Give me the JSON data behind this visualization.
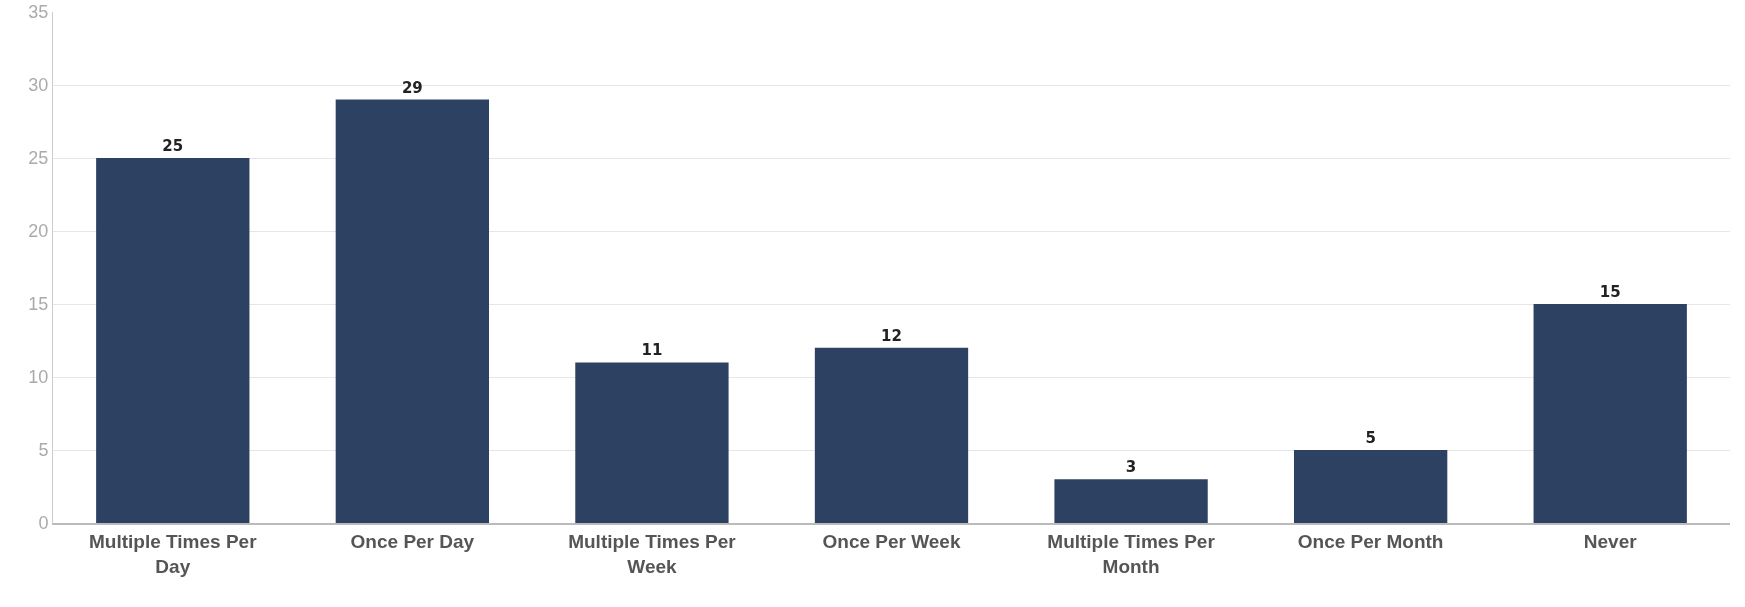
{
  "chart_data": {
    "type": "bar",
    "categories": [
      "Multiple Times Per Day",
      "Once Per Day",
      "Multiple Times Per Week",
      "Once Per Week",
      "Multiple Times Per Month",
      "Once Per Month",
      "Never"
    ],
    "values": [
      25,
      29,
      11,
      12,
      3,
      5,
      15
    ],
    "color": "#2d4263",
    "ylim": [
      0,
      35
    ],
    "yticks": [
      0,
      5,
      10,
      15,
      20,
      25,
      30,
      35
    ],
    "grid": "y",
    "data_labels": true
  }
}
